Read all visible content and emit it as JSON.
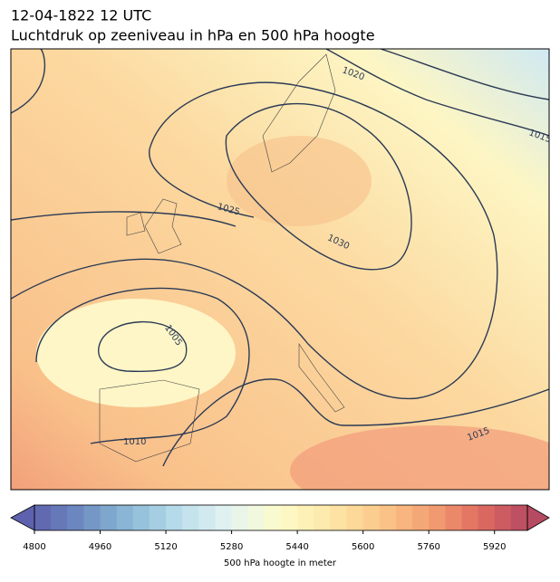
{
  "header": {
    "title": "12-04-1822 12 UTC",
    "subtitle": "Luchtdruk op zeeniveau in hPa en 500 hPa hoogte"
  },
  "contour_labels": [
    "1020",
    "1015",
    "1025",
    "1030",
    "1005",
    "1010",
    "1015"
  ],
  "colorbar": {
    "min": 4800,
    "max": 6000,
    "step": 40,
    "ticks": [
      4800,
      4960,
      5120,
      5280,
      5440,
      5600,
      5760,
      5920
    ],
    "label": "500 hPa hoogte in meter",
    "colors": [
      "#5e61ad",
      "#6f8fc2",
      "#8fbcd8",
      "#bde0ec",
      "#e6f4f1",
      "#fdfbc8",
      "#fde7a8",
      "#fbc98a",
      "#f4a173",
      "#e16e61",
      "#b64a62"
    ]
  }
}
